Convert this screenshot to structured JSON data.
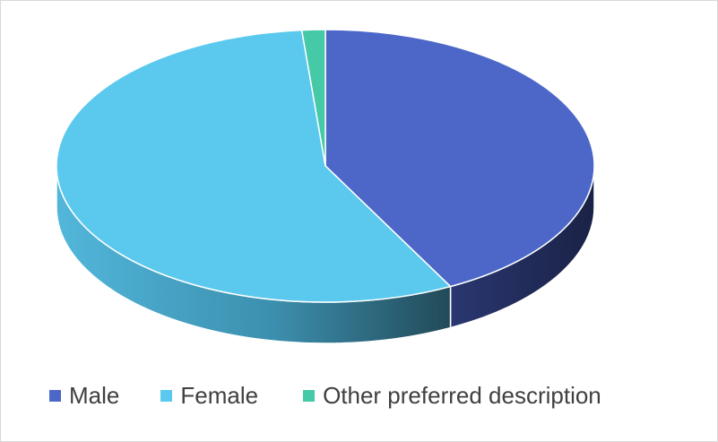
{
  "chart_data": {
    "type": "pie",
    "style": "3d",
    "title": "",
    "categories": [
      "Male",
      "Female",
      "Other preferred description"
    ],
    "values": [
      42.3,
      56.3,
      1.4
    ],
    "unit": "percent (estimated share)",
    "legend_position": "bottom",
    "colors": {
      "Male": "#4c67c8",
      "Female": "#5bc8ee",
      "Other preferred description": "#45c9a6"
    },
    "side_colors": {
      "Male": "#1f2a55",
      "Female": "#2e6e84",
      "Other preferred description": "#1f6f5a"
    }
  },
  "legend": {
    "items": [
      {
        "label": "Male",
        "color": "#4c67c8"
      },
      {
        "label": "Female",
        "color": "#5bc8ee"
      },
      {
        "label": "Other preferred description",
        "color": "#45c9a6"
      }
    ]
  }
}
